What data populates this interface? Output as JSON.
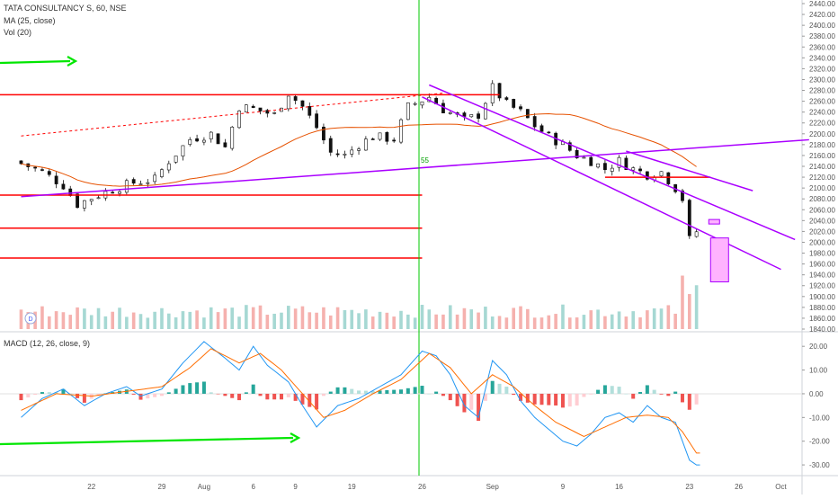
{
  "header": {
    "symbol_line": "TATA CONSULTANCY S, 60, NSE",
    "ma_line": "MA (25, close)",
    "vol_line": "Vol (20)",
    "macd_line": "MACD (12, 26, close, 9)"
  },
  "colors": {
    "up": "#26a69a",
    "down": "#ef5350",
    "ma": "#e65100",
    "macd": "#2196f3",
    "signal": "#ff6d00",
    "level_lines": "#ff0000",
    "channel": "#aa00ff",
    "green_arrow": "#00e600",
    "cursor_line": "#00c800",
    "box_fill": "#ffb3ff"
  },
  "chart_data": [
    {
      "type": "line",
      "name": "price",
      "title": "TATA CONSULTANCY S, 60, NSE",
      "ylim": [
        1840,
        2440
      ],
      "yticks": [
        "2440.00",
        "2420.00",
        "2400.00",
        "2380.00",
        "2360.00",
        "2340.00",
        "2320.00",
        "2300.00",
        "2280.00",
        "2260.00",
        "2240.00",
        "2220.00",
        "2200.00",
        "2180.00",
        "2160.00",
        "2140.00",
        "2120.00",
        "2100.00",
        "2080.00",
        "2060.00",
        "2040.00",
        "2020.00",
        "2000.00",
        "1980.00",
        "1960.00",
        "1940.00",
        "1920.00",
        "1900.00",
        "1880.00",
        "1860.00",
        "1840.00"
      ],
      "xticks": [
        "22",
        "29",
        "Aug",
        "6",
        "9",
        "19",
        "26",
        "Sep",
        "9",
        "16",
        "23",
        "26",
        "Oct"
      ],
      "x_index_range": [
        0,
        100
      ],
      "xtick_index": [
        10,
        20,
        26,
        33,
        39,
        47,
        57,
        67,
        77,
        85,
        95,
        102,
        108
      ],
      "close_knots": [
        [
          0,
          2145
        ],
        [
          3,
          2130
        ],
        [
          6,
          2105
        ],
        [
          8,
          2070
        ],
        [
          10,
          2082
        ],
        [
          13,
          2097
        ],
        [
          16,
          2110
        ],
        [
          19,
          2116
        ],
        [
          21,
          2150
        ],
        [
          24,
          2190
        ],
        [
          27,
          2200
        ],
        [
          29,
          2175
        ],
        [
          31,
          2250
        ],
        [
          33,
          2246
        ],
        [
          36,
          2235
        ],
        [
          38,
          2275
        ],
        [
          40,
          2250
        ],
        [
          42,
          2212
        ],
        [
          44,
          2165
        ],
        [
          46,
          2160
        ],
        [
          48,
          2180
        ],
        [
          50,
          2195
        ],
        [
          53,
          2190
        ],
        [
          55,
          2250
        ],
        [
          58,
          2268
        ],
        [
          60,
          2245
        ],
        [
          63,
          2225
        ],
        [
          65,
          2235
        ],
        [
          67,
          2285
        ],
        [
          69,
          2255
        ],
        [
          71,
          2240
        ],
        [
          73,
          2215
        ],
        [
          75,
          2195
        ],
        [
          77,
          2180
        ],
        [
          79,
          2160
        ],
        [
          81,
          2150
        ],
        [
          83,
          2135
        ],
        [
          85,
          2150
        ],
        [
          87,
          2135
        ],
        [
          89,
          2125
        ],
        [
          91,
          2130
        ],
        [
          93,
          2100
        ],
        [
          94,
          2080
        ],
        [
          95,
          2005
        ],
        [
          96,
          2020
        ]
      ],
      "ma_label": "MA (25, close)",
      "horizontal_levels": [
        2272,
        2087,
        2026,
        1971,
        2120
      ],
      "channel_top": [
        [
          58,
          2290
        ],
        [
          110,
          2005
        ]
      ],
      "channel_bottom": [
        [
          57,
          2268
        ],
        [
          108,
          1950
        ]
      ],
      "trendline_lower": [
        [
          0,
          2084
        ],
        [
          112,
          2189
        ]
      ],
      "dashed_trendline": [
        [
          0,
          2196
        ],
        [
          60,
          2275
        ]
      ],
      "annotation": "55"
    },
    {
      "type": "bar",
      "name": "volume",
      "title": "Vol (20)",
      "spike_index": [
        94,
        95,
        96
      ],
      "base_level": 0.3
    },
    {
      "type": "line",
      "name": "macd",
      "title": "MACD (12, 26, close, 9)",
      "ylim": [
        -33,
        25
      ],
      "yticks": [
        "20.00",
        "10.00",
        "0.00",
        "-10.00",
        "-20.00",
        "-30.00"
      ],
      "macd_knots": [
        [
          0,
          -10
        ],
        [
          3,
          -2
        ],
        [
          6,
          2
        ],
        [
          9,
          -5
        ],
        [
          12,
          0
        ],
        [
          15,
          3
        ],
        [
          17,
          -1
        ],
        [
          20,
          2
        ],
        [
          23,
          13
        ],
        [
          26,
          22
        ],
        [
          29,
          15
        ],
        [
          31,
          10
        ],
        [
          33,
          20
        ],
        [
          35,
          12
        ],
        [
          38,
          5
        ],
        [
          40,
          -5
        ],
        [
          42,
          -14
        ],
        [
          45,
          -5
        ],
        [
          48,
          -2
        ],
        [
          51,
          3
        ],
        [
          54,
          8
        ],
        [
          57,
          18
        ],
        [
          59,
          16
        ],
        [
          61,
          8
        ],
        [
          63,
          -5
        ],
        [
          65,
          -10
        ],
        [
          67,
          14
        ],
        [
          69,
          8
        ],
        [
          71,
          -3
        ],
        [
          73,
          -10
        ],
        [
          75,
          -15
        ],
        [
          77,
          -20
        ],
        [
          79,
          -22
        ],
        [
          81,
          -17
        ],
        [
          83,
          -10
        ],
        [
          85,
          -8
        ],
        [
          87,
          -12
        ],
        [
          89,
          -5
        ],
        [
          91,
          -10
        ],
        [
          93,
          -12
        ],
        [
          95,
          -28
        ],
        [
          96,
          -30
        ]
      ],
      "signal_knots": [
        [
          0,
          -7
        ],
        [
          5,
          0
        ],
        [
          10,
          -1
        ],
        [
          15,
          1
        ],
        [
          20,
          3
        ],
        [
          24,
          11
        ],
        [
          27,
          19
        ],
        [
          31,
          13
        ],
        [
          34,
          17
        ],
        [
          37,
          10
        ],
        [
          40,
          0
        ],
        [
          43,
          -10
        ],
        [
          46,
          -7
        ],
        [
          50,
          0
        ],
        [
          54,
          6
        ],
        [
          58,
          17
        ],
        [
          61,
          11
        ],
        [
          64,
          0
        ],
        [
          67,
          8
        ],
        [
          70,
          3
        ],
        [
          73,
          -5
        ],
        [
          76,
          -12
        ],
        [
          80,
          -18
        ],
        [
          83,
          -14
        ],
        [
          86,
          -10
        ],
        [
          89,
          -9
        ],
        [
          92,
          -10
        ],
        [
          94,
          -16
        ],
        [
          96,
          -25
        ]
      ]
    }
  ]
}
